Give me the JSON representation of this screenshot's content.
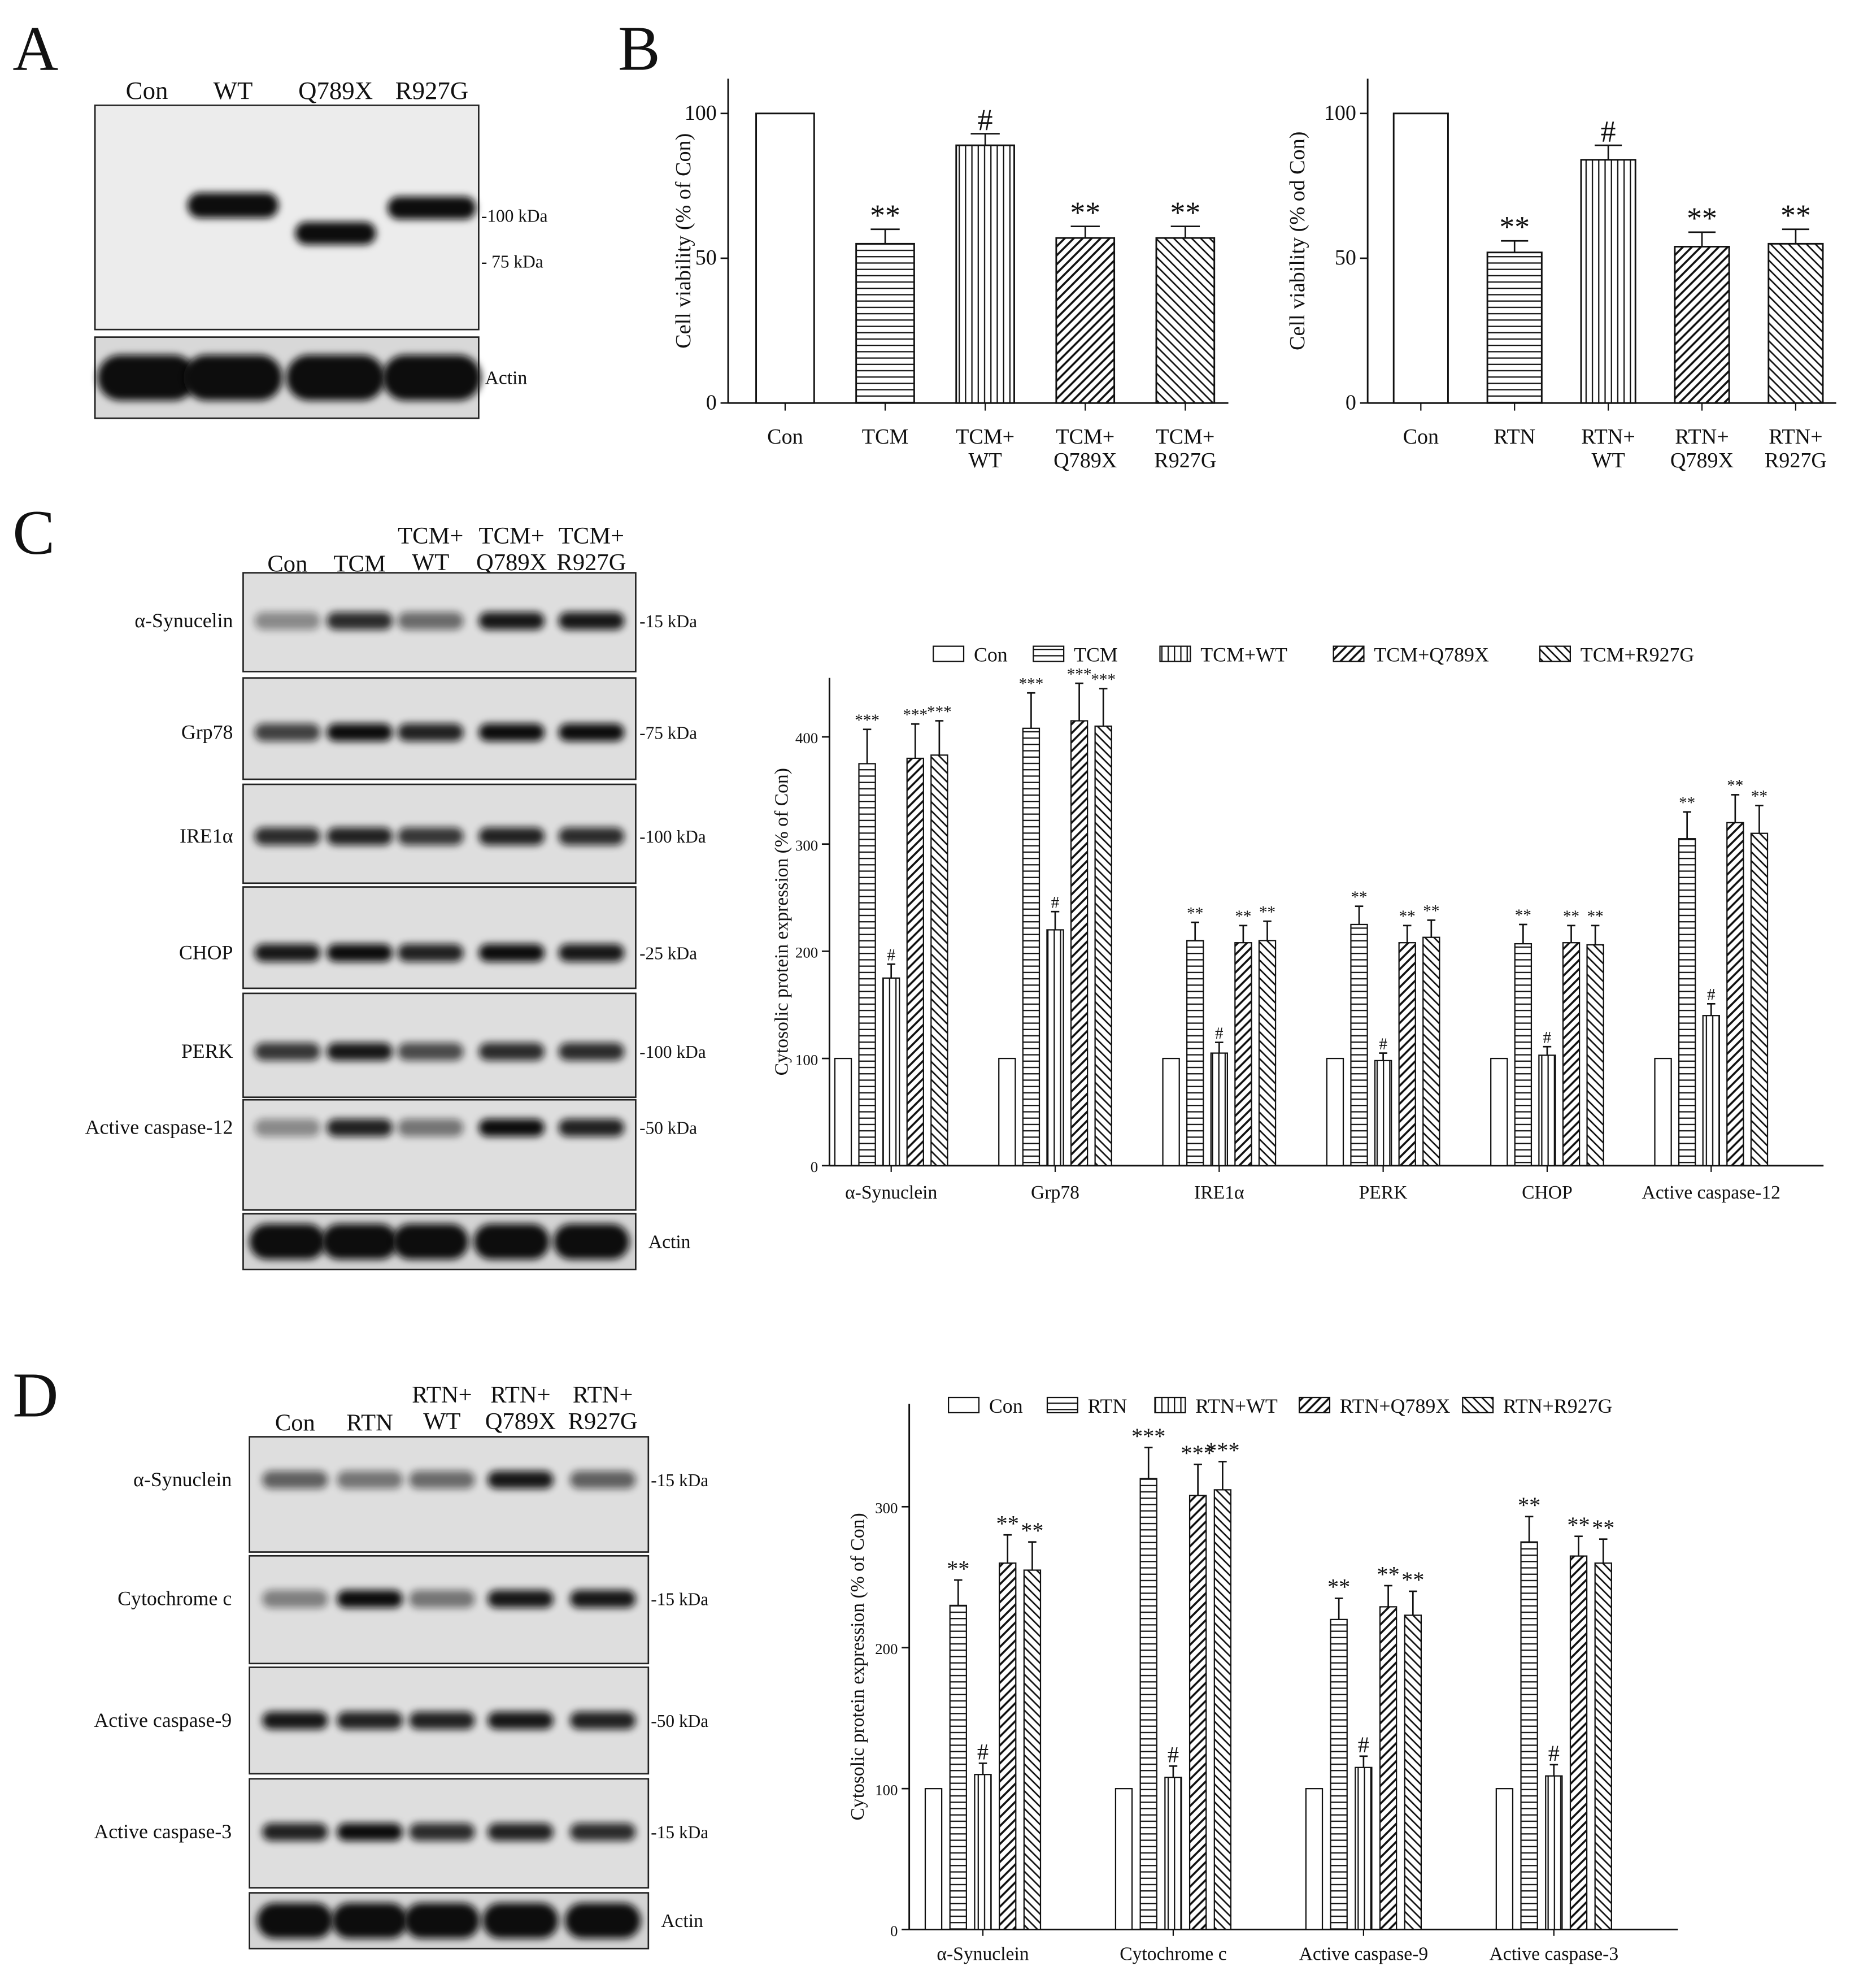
{
  "panel_labels": [
    "A",
    "B",
    "C",
    "D"
  ],
  "blot_a": {
    "lanes": [
      "Con",
      "WT",
      "Q789X",
      "R927G"
    ],
    "markers": [
      "-100 kDa",
      "- 75 kDa"
    ],
    "loading_control": "Actin"
  },
  "blot_c": {
    "lanes": [
      "Con",
      "TCM",
      "TCM+\nWT",
      "TCM+\nQ789X",
      "TCM+\nR927G"
    ],
    "rows": [
      {
        "label": "α-Synucelin",
        "marker": "-15 kDa"
      },
      {
        "label": "Grp78",
        "marker": "-75 kDa"
      },
      {
        "label": "IRE1α",
        "marker": "-100 kDa"
      },
      {
        "label": "CHOP",
        "marker": "-25 kDa"
      },
      {
        "label": "PERK",
        "marker": "-100 kDa"
      },
      {
        "label": "Active caspase-12",
        "marker": "-50 kDa"
      }
    ],
    "loading_control": "Actin"
  },
  "blot_d": {
    "lanes": [
      "Con",
      "RTN",
      "RTN+\nWT",
      "RTN+\nQ789X",
      "RTN+\nR927G"
    ],
    "rows": [
      {
        "label": "α-Synuclein",
        "marker": "-15 kDa"
      },
      {
        "label": "Cytochrome c",
        "marker": "-15 kDa"
      },
      {
        "label": "Active caspase-9",
        "marker": "-50 kDa"
      },
      {
        "label": "Active caspase-3",
        "marker": "-15 kDa"
      }
    ],
    "loading_control": "Actin"
  },
  "chart_data": [
    {
      "type": "bar",
      "y_label": "Cell viability (% of Con)",
      "categories": [
        "Con",
        "TCM",
        "TCM+\nWT",
        "TCM+\nQ789X",
        "TCM+\nR927G"
      ],
      "values": [
        100,
        55,
        89,
        57,
        57
      ],
      "errors": [
        null,
        5,
        4,
        4,
        4
      ],
      "annotations": [
        null,
        "**",
        "#",
        "**",
        "**"
      ],
      "patterns": [
        "none",
        "horizontal",
        "vertical",
        "diagonal",
        "back-diagonal"
      ],
      "ylim": [
        0,
        112
      ],
      "yticks": [
        0,
        50,
        100
      ]
    },
    {
      "type": "bar",
      "y_label": "Cell viability (% od Con)",
      "categories": [
        "Con",
        "RTN",
        "RTN+\nWT",
        "RTN+\nQ789X",
        "RTN+\nR927G"
      ],
      "values": [
        100,
        52,
        84,
        54,
        55
      ],
      "errors": [
        null,
        4,
        5,
        5,
        5
      ],
      "annotations": [
        null,
        "**",
        "#",
        "**",
        "**"
      ],
      "patterns": [
        "none",
        "horizontal",
        "vertical",
        "diagonal",
        "back-diagonal"
      ],
      "ylim": [
        0,
        112
      ],
      "yticks": [
        0,
        50,
        100
      ]
    },
    {
      "type": "grouped_bar",
      "y_label": "Cytosolic protein expression (% of Con)",
      "legend": "top",
      "categories": [
        "α-Synuclein",
        "Grp78",
        "IRE1α",
        "PERK",
        "CHOP",
        "Active caspase-12"
      ],
      "series": [
        {
          "name": "Con",
          "pattern": "none",
          "values": [
            100,
            100,
            100,
            100,
            100,
            100
          ],
          "errors": [
            null,
            null,
            null,
            null,
            null,
            null
          ],
          "annotations": [
            null,
            null,
            null,
            null,
            null,
            null
          ]
        },
        {
          "name": "TCM",
          "pattern": "horizontal",
          "values": [
            375,
            408,
            210,
            225,
            207,
            305
          ],
          "errors": [
            32,
            33,
            17,
            17,
            18,
            25
          ],
          "annotations": [
            "***",
            "***",
            "**",
            "**",
            "**",
            "**"
          ]
        },
        {
          "name": "TCM+WT",
          "pattern": "vertical",
          "values": [
            175,
            220,
            105,
            98,
            103,
            140
          ],
          "errors": [
            13,
            17,
            10,
            7,
            8,
            11
          ],
          "annotations": [
            "#",
            "#",
            "#",
            "#",
            "#",
            "#"
          ]
        },
        {
          "name": "TCM+Q789X",
          "pattern": "diagonal",
          "values": [
            380,
            415,
            208,
            208,
            208,
            320
          ],
          "errors": [
            32,
            35,
            16,
            16,
            16,
            26
          ],
          "annotations": [
            "***",
            "***",
            "**",
            "**",
            "**",
            "**"
          ]
        },
        {
          "name": "TCM+R927G",
          "pattern": "back-diagonal",
          "values": [
            383,
            410,
            210,
            213,
            206,
            310
          ],
          "errors": [
            32,
            35,
            18,
            16,
            18,
            26
          ],
          "annotations": [
            "***",
            "***",
            "**",
            "**",
            "**",
            "**"
          ]
        }
      ],
      "ylim": [
        0,
        455
      ],
      "yticks": [
        0,
        100,
        200,
        300,
        400
      ]
    },
    {
      "type": "grouped_bar",
      "y_label": "Cytosolic protein expression (% of Con)",
      "legend": "top",
      "categories": [
        "α-Synuclein",
        "Cytochrome c",
        "Active caspase-9",
        "Active caspase-3"
      ],
      "series": [
        {
          "name": "Con",
          "pattern": "none",
          "values": [
            100,
            100,
            100,
            100
          ],
          "errors": [
            null,
            null,
            null,
            null
          ],
          "annotations": [
            null,
            null,
            null,
            null
          ]
        },
        {
          "name": "RTN",
          "pattern": "horizontal",
          "values": [
            230,
            320,
            220,
            275
          ],
          "errors": [
            18,
            22,
            15,
            18
          ],
          "annotations": [
            "**",
            "***",
            "**",
            "**"
          ]
        },
        {
          "name": "RTN+WT",
          "pattern": "vertical",
          "values": [
            110,
            108,
            115,
            109
          ],
          "errors": [
            8,
            8,
            8,
            8
          ],
          "annotations": [
            "#",
            "#",
            "#",
            "#"
          ]
        },
        {
          "name": "RTN+Q789X",
          "pattern": "diagonal",
          "values": [
            260,
            308,
            229,
            265
          ],
          "errors": [
            20,
            22,
            15,
            14
          ],
          "annotations": [
            "**",
            "***",
            "**",
            "**"
          ]
        },
        {
          "name": "RTN+R927G",
          "pattern": "back-diagonal",
          "values": [
            255,
            312,
            223,
            260
          ],
          "errors": [
            20,
            20,
            17,
            17
          ],
          "annotations": [
            "**",
            "***",
            "**",
            "**"
          ]
        }
      ],
      "ylim": [
        0,
        373
      ],
      "yticks": [
        0,
        100,
        200,
        300
      ]
    }
  ]
}
